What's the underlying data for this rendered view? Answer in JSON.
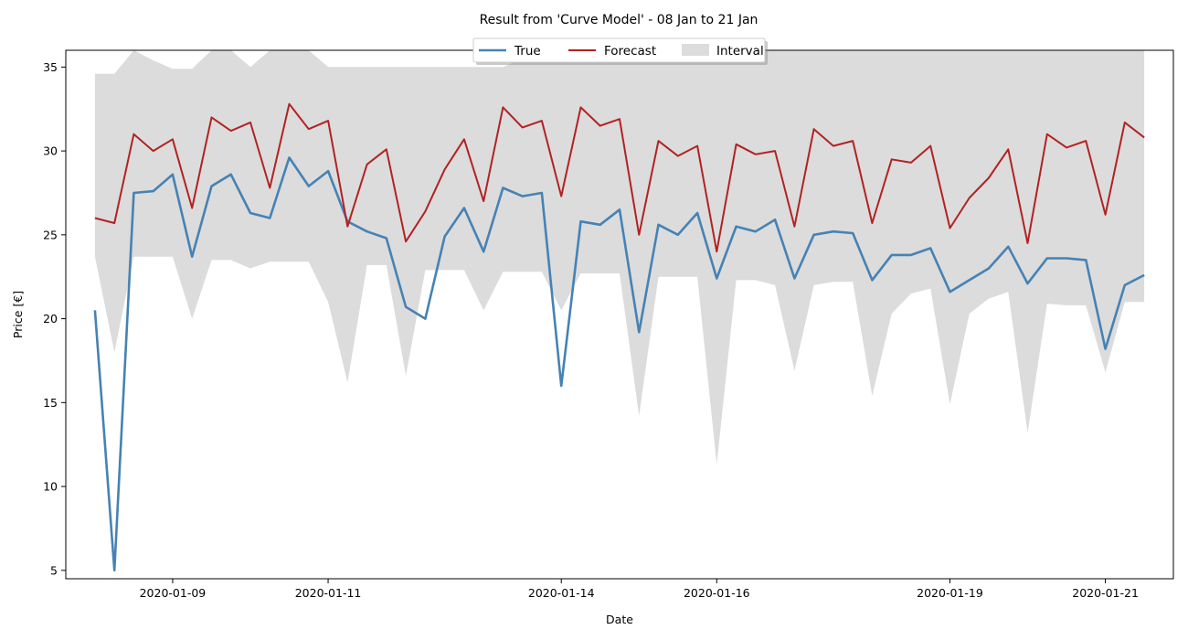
{
  "chart_data": {
    "type": "line",
    "title": "Result from 'Curve Model' - 08 Jan to 21 Jan",
    "xlabel": "Date",
    "ylabel": "Price [€]",
    "x_ticks": [
      "2020-01-09",
      "2020-01-11",
      "2020-01-14",
      "2020-01-16",
      "2020-01-19",
      "2020-01-21"
    ],
    "y_ticks": [
      5,
      10,
      15,
      20,
      25,
      30,
      35
    ],
    "x_range": [
      "2020-01-07 15:00",
      "2020-01-21 21:00"
    ],
    "ylim": [
      4.5,
      36.0
    ],
    "legend": {
      "position": "top-center",
      "entries": [
        "True",
        "Forecast",
        "Interval"
      ]
    },
    "colors": {
      "true": "#4682b4",
      "forecast": "#b22222",
      "interval": "#dcdcdc"
    },
    "x": [
      "2020-01-08 00:00",
      "2020-01-08 06:00",
      "2020-01-08 12:00",
      "2020-01-08 18:00",
      "2020-01-09 00:00",
      "2020-01-09 06:00",
      "2020-01-09 12:00",
      "2020-01-09 18:00",
      "2020-01-10 00:00",
      "2020-01-10 06:00",
      "2020-01-10 12:00",
      "2020-01-10 18:00",
      "2020-01-11 00:00",
      "2020-01-11 06:00",
      "2020-01-11 12:00",
      "2020-01-11 18:00",
      "2020-01-12 00:00",
      "2020-01-12 06:00",
      "2020-01-12 12:00",
      "2020-01-12 18:00",
      "2020-01-13 00:00",
      "2020-01-13 06:00",
      "2020-01-13 12:00",
      "2020-01-13 18:00",
      "2020-01-14 00:00",
      "2020-01-14 06:00",
      "2020-01-14 12:00",
      "2020-01-14 18:00",
      "2020-01-15 00:00",
      "2020-01-15 06:00",
      "2020-01-15 12:00",
      "2020-01-15 18:00",
      "2020-01-16 00:00",
      "2020-01-16 06:00",
      "2020-01-16 12:00",
      "2020-01-16 18:00",
      "2020-01-17 00:00",
      "2020-01-17 06:00",
      "2020-01-17 12:00",
      "2020-01-17 18:00",
      "2020-01-18 00:00",
      "2020-01-18 06:00",
      "2020-01-18 12:00",
      "2020-01-18 18:00",
      "2020-01-19 00:00",
      "2020-01-19 06:00",
      "2020-01-19 12:00",
      "2020-01-19 18:00",
      "2020-01-20 00:00",
      "2020-01-20 06:00",
      "2020-01-20 12:00",
      "2020-01-20 18:00",
      "2020-01-21 00:00",
      "2020-01-21 06:00",
      "2020-01-21 12:00"
    ],
    "series": [
      {
        "name": "True",
        "values": [
          20.5,
          5.0,
          27.5,
          27.6,
          28.6,
          23.7,
          27.9,
          28.6,
          26.3,
          26.0,
          29.6,
          27.9,
          28.8,
          25.8,
          25.2,
          24.8,
          20.7,
          20.0,
          24.9,
          26.6,
          24.0,
          27.8,
          27.3,
          27.5,
          16.0,
          25.8,
          25.6,
          26.5,
          19.2,
          25.6,
          25.0,
          26.3,
          22.4,
          25.5,
          25.2,
          25.9,
          22.4,
          25.0,
          25.2,
          25.1,
          22.3,
          23.8,
          23.8,
          24.2,
          21.6,
          22.3,
          23.0,
          24.3,
          22.1,
          23.6,
          23.6,
          23.5,
          18.2,
          22.0,
          22.6
        ]
      },
      {
        "name": "Forecast",
        "values": [
          26.0,
          25.7,
          31.0,
          30.0,
          30.7,
          26.6,
          32.0,
          31.2,
          31.7,
          27.8,
          32.8,
          31.3,
          31.8,
          25.5,
          29.2,
          30.1,
          24.6,
          26.4,
          28.9,
          30.7,
          27.0,
          32.6,
          31.4,
          31.8,
          27.3,
          32.6,
          31.5,
          31.9,
          25.0,
          30.6,
          29.7,
          30.3,
          24.0,
          30.4,
          29.8,
          30.0,
          25.5,
          31.3,
          30.3,
          30.6,
          25.7,
          29.5,
          29.3,
          30.3,
          25.4,
          27.2,
          28.4,
          30.1,
          24.5,
          31.0,
          30.2,
          30.6,
          26.2,
          31.7,
          30.8
        ]
      },
      {
        "name": "Interval",
        "lower": [
          23.7,
          18.0,
          23.7,
          23.7,
          23.7,
          20.0,
          23.5,
          23.5,
          23.0,
          23.4,
          23.4,
          23.4,
          21.0,
          16.2,
          23.2,
          23.2,
          16.6,
          22.9,
          22.9,
          22.9,
          20.5,
          22.8,
          22.8,
          22.8,
          20.5,
          22.7,
          22.7,
          22.7,
          14.2,
          22.5,
          22.5,
          22.5,
          11.3,
          22.3,
          22.3,
          22.0,
          16.9,
          22.0,
          22.2,
          22.2,
          15.4,
          20.3,
          21.5,
          21.8,
          14.9,
          20.3,
          21.2,
          21.6,
          13.2,
          20.9,
          20.8,
          20.8,
          16.8,
          21.0,
          21.0
        ],
        "upper": [
          34.6,
          34.6,
          36.0,
          35.4,
          34.9,
          34.9,
          36.0,
          36.0,
          35.0,
          36.0,
          36.0,
          36.0,
          35.0,
          35.0,
          35.0,
          35.0,
          35.0,
          35.0,
          35.0,
          35.0,
          35.0,
          35.0,
          35.5,
          35.5,
          35.5,
          35.5,
          36.0,
          36.0,
          36.0,
          36.0,
          36.0,
          36.0,
          36.0,
          36.0,
          36.0,
          36.0,
          36.0,
          36.0,
          36.0,
          36.0,
          36.0,
          36.0,
          36.0,
          36.0,
          36.0,
          36.0,
          36.0,
          36.0,
          36.0,
          36.0,
          36.0,
          36.0,
          36.0,
          36.0,
          36.0
        ]
      }
    ]
  }
}
